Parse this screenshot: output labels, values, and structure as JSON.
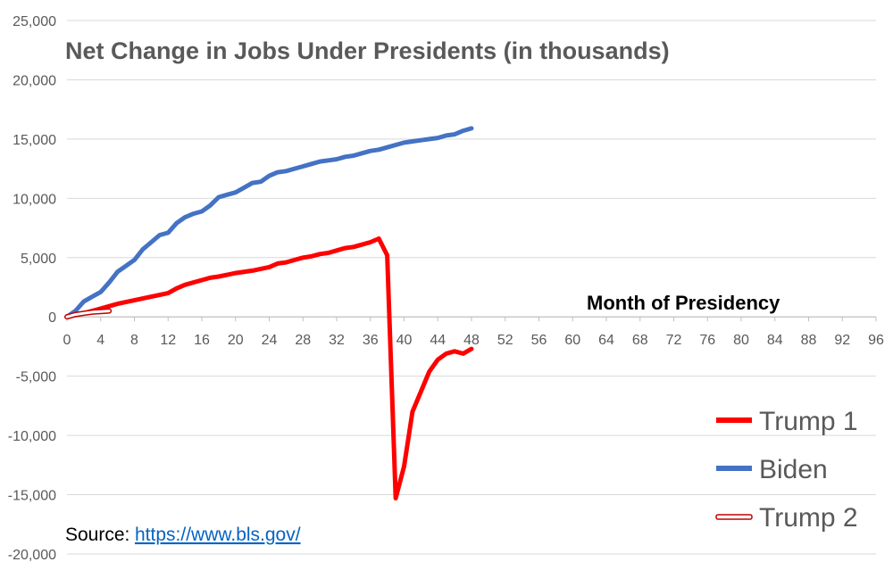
{
  "chart_data": {
    "type": "line",
    "title": "Net Change in Jobs Under Presidents (in thousands)",
    "xlabel": "Month of Presidency",
    "ylabel": "",
    "xlim": [
      0,
      96
    ],
    "ylim": [
      -20000,
      25000
    ],
    "x_ticks": [
      0,
      4,
      8,
      12,
      16,
      20,
      24,
      28,
      32,
      36,
      40,
      44,
      48,
      52,
      56,
      60,
      64,
      68,
      72,
      76,
      80,
      84,
      88,
      92,
      96
    ],
    "y_ticks": [
      -20000,
      -15000,
      -10000,
      -5000,
      0,
      5000,
      10000,
      15000,
      20000,
      25000
    ],
    "y_tick_labels": [
      "-20,000",
      "-15,000",
      "-10,000",
      "-5,000",
      "0",
      "5,000",
      "10,000",
      "15,000",
      "20,000",
      "25,000"
    ],
    "grid": "horizontal",
    "legend_position": "bottom-right",
    "series": [
      {
        "name": "Trump 1",
        "color": "#ff0000",
        "style": "solid",
        "x": [
          0,
          2,
          4,
          6,
          8,
          10,
          12,
          13,
          14,
          16,
          17,
          18,
          20,
          22,
          24,
          25,
          26,
          27,
          28,
          29,
          30,
          31,
          32,
          33,
          34,
          35,
          36,
          37,
          38,
          39,
          40,
          41,
          42,
          43,
          44,
          45,
          46,
          47,
          48
        ],
        "values": [
          0,
          300,
          700,
          1100,
          1400,
          1700,
          2000,
          2400,
          2700,
          3100,
          3300,
          3400,
          3700,
          3900,
          4200,
          4500,
          4600,
          4800,
          5000,
          5100,
          5300,
          5400,
          5600,
          5800,
          5900,
          6100,
          6300,
          6600,
          5200,
          -15300,
          -12600,
          -8000,
          -6300,
          -4600,
          -3600,
          -3100,
          -2900,
          -3100,
          -2700
        ]
      },
      {
        "name": "Biden",
        "color": "#4472c4",
        "style": "solid",
        "x": [
          0,
          1,
          2,
          3,
          4,
          5,
          6,
          7,
          8,
          9,
          10,
          11,
          12,
          13,
          14,
          15,
          16,
          17,
          18,
          19,
          20,
          21,
          22,
          23,
          24,
          25,
          26,
          27,
          28,
          29,
          30,
          31,
          32,
          33,
          34,
          35,
          36,
          37,
          38,
          39,
          40,
          41,
          42,
          43,
          44,
          45,
          46,
          47,
          48
        ],
        "values": [
          0,
          500,
          1300,
          1700,
          2100,
          2900,
          3800,
          4300,
          4800,
          5700,
          6300,
          6900,
          7100,
          7900,
          8400,
          8700,
          8900,
          9400,
          10100,
          10300,
          10500,
          10900,
          11300,
          11400,
          11900,
          12200,
          12300,
          12500,
          12700,
          12900,
          13100,
          13200,
          13300,
          13500,
          13600,
          13800,
          14000,
          14100,
          14300,
          14500,
          14700,
          14800,
          14900,
          15000,
          15100,
          15300,
          15400,
          15700,
          15900
        ]
      },
      {
        "name": "Trump 2",
        "color": "#c00000",
        "style": "outline",
        "x": [
          0,
          1,
          2,
          3,
          4,
          5
        ],
        "values": [
          0,
          200,
          300,
          400,
          450,
          500
        ]
      }
    ],
    "source_label": "Source:",
    "source_link": "https://www.bls.gov/"
  }
}
